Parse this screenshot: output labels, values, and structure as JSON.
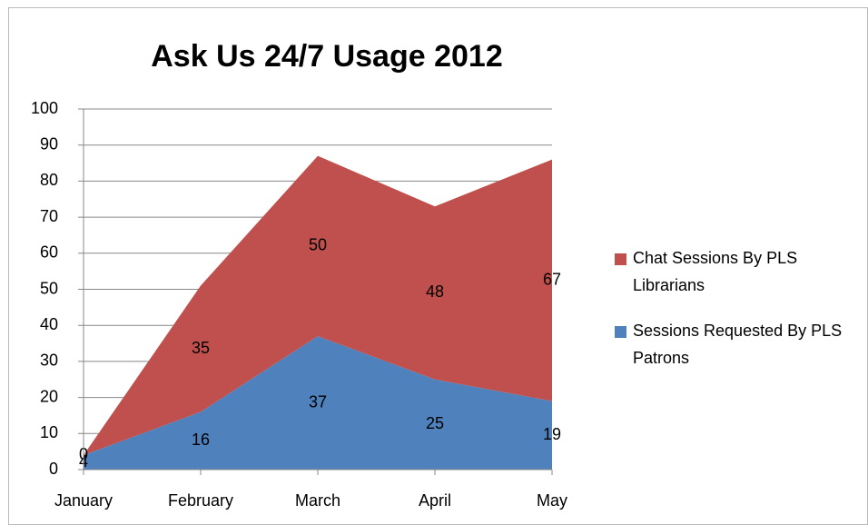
{
  "chart_data": {
    "type": "stacked_area",
    "title": "Ask Us 24/7 Usage 2012",
    "categories": [
      "January",
      "February",
      "March",
      "April",
      "May"
    ],
    "series": [
      {
        "name": "Sessions Requested By PLS Patrons",
        "color": "#4f81bd",
        "values": [
          4,
          16,
          37,
          25,
          19
        ]
      },
      {
        "name": "Chat Sessions By PLS Librarians",
        "color": "#c0504d",
        "values": [
          0,
          35,
          50,
          48,
          67
        ]
      }
    ],
    "ylim": [
      0,
      100
    ],
    "yticks": [
      0,
      10,
      20,
      30,
      40,
      50,
      60,
      70,
      80,
      90,
      100
    ],
    "grid": true,
    "legend": "right"
  }
}
